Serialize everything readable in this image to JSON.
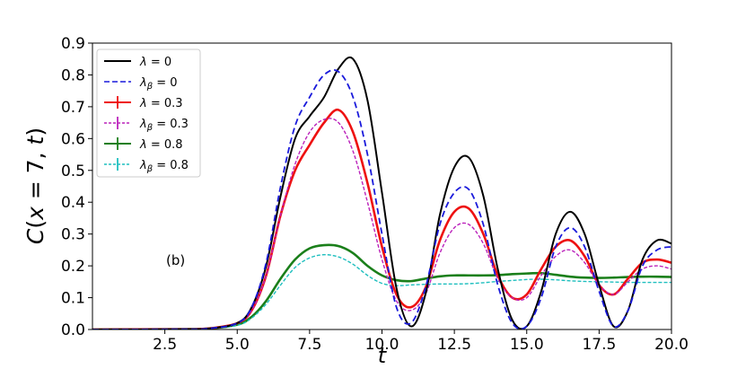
{
  "chart_data": {
    "type": "line",
    "xlabel": "t",
    "ylabel": "C(x = 7, t)",
    "xlim": [
      0,
      20
    ],
    "ylim": [
      0,
      0.9
    ],
    "xticks": [
      "2.5",
      "5.0",
      "7.5",
      "10.0",
      "12.5",
      "15.0",
      "17.5",
      "20.0"
    ],
    "yticks": [
      "0.0",
      "0.1",
      "0.2",
      "0.3",
      "0.4",
      "0.5",
      "0.6",
      "0.7",
      "0.8",
      "0.9"
    ],
    "annotation": "(b)",
    "grid": false,
    "legend_placement": "top-left",
    "series": [
      {
        "name": "λ = 0",
        "color": "#000000",
        "style": "solid",
        "marker": "none",
        "x": [
          0,
          3,
          4,
          5,
          5.5,
          6,
          6.5,
          7,
          7.5,
          8,
          8.5,
          9,
          9.5,
          10,
          10.5,
          11,
          11.5,
          12,
          12.5,
          13,
          13.5,
          14,
          14.5,
          15,
          15.5,
          16,
          16.5,
          17,
          17.5,
          18,
          18.5,
          19,
          19.5,
          20
        ],
        "y": [
          0,
          0.001,
          0.003,
          0.02,
          0.07,
          0.2,
          0.42,
          0.6,
          0.67,
          0.73,
          0.82,
          0.85,
          0.72,
          0.43,
          0.13,
          0.01,
          0.11,
          0.36,
          0.51,
          0.54,
          0.42,
          0.19,
          0.03,
          0.01,
          0.12,
          0.3,
          0.37,
          0.3,
          0.14,
          0.01,
          0.06,
          0.22,
          0.28,
          0.27
        ]
      },
      {
        "name": "λβ = 0",
        "color": "#1a1adb",
        "style": "dashed",
        "marker": "none",
        "x": [
          0,
          3,
          4,
          5,
          5.5,
          6,
          6.5,
          7,
          7.5,
          8,
          8.5,
          9,
          9.5,
          10,
          10.5,
          11,
          11.5,
          12,
          12.5,
          13,
          13.5,
          14,
          14.5,
          15,
          15.5,
          16,
          16.5,
          17,
          17.5,
          18,
          18.5,
          19,
          19.5,
          20
        ],
        "y": [
          0,
          0.001,
          0.003,
          0.02,
          0.07,
          0.21,
          0.45,
          0.64,
          0.73,
          0.8,
          0.81,
          0.73,
          0.55,
          0.3,
          0.07,
          0.02,
          0.13,
          0.33,
          0.43,
          0.44,
          0.33,
          0.14,
          0.02,
          0.01,
          0.1,
          0.26,
          0.32,
          0.26,
          0.12,
          0.01,
          0.06,
          0.2,
          0.25,
          0.26
        ]
      },
      {
        "name": "λ = 0.3",
        "color": "#ee1111",
        "style": "solid",
        "marker": "errorbar",
        "x": [
          0,
          3,
          4,
          5,
          5.5,
          6,
          6.5,
          7,
          7.5,
          8,
          8.5,
          9,
          9.5,
          10,
          10.5,
          11,
          11.5,
          12,
          12.5,
          13,
          13.5,
          14,
          14.5,
          15,
          15.5,
          16,
          16.5,
          17,
          17.5,
          18,
          18.5,
          19,
          19.5,
          20
        ],
        "y": [
          0,
          0.001,
          0.003,
          0.02,
          0.06,
          0.17,
          0.36,
          0.5,
          0.58,
          0.65,
          0.69,
          0.62,
          0.46,
          0.26,
          0.11,
          0.07,
          0.13,
          0.28,
          0.37,
          0.38,
          0.3,
          0.17,
          0.1,
          0.11,
          0.19,
          0.26,
          0.28,
          0.23,
          0.14,
          0.11,
          0.16,
          0.21,
          0.22,
          0.21
        ]
      },
      {
        "name": "λβ = 0.3",
        "color": "#bb22bb",
        "style": "dashed",
        "marker": "errorbar",
        "x": [
          0,
          3,
          4,
          5,
          5.5,
          6,
          6.5,
          7,
          7.5,
          8,
          8.5,
          9,
          9.5,
          10,
          10.5,
          11,
          11.5,
          12,
          12.5,
          13,
          13.5,
          14,
          14.5,
          15,
          15.5,
          16,
          16.5,
          17,
          17.5,
          18,
          18.5,
          19,
          19.5,
          20
        ],
        "y": [
          0,
          0.001,
          0.003,
          0.02,
          0.06,
          0.17,
          0.36,
          0.52,
          0.62,
          0.66,
          0.65,
          0.56,
          0.4,
          0.22,
          0.09,
          0.06,
          0.11,
          0.24,
          0.32,
          0.33,
          0.27,
          0.16,
          0.1,
          0.1,
          0.17,
          0.23,
          0.25,
          0.21,
          0.14,
          0.11,
          0.15,
          0.19,
          0.2,
          0.19
        ]
      },
      {
        "name": "λ = 0.8",
        "color": "#1a7f1a",
        "style": "solid",
        "marker": "errorbar",
        "x": [
          0,
          3,
          4,
          5,
          5.5,
          6,
          6.5,
          7,
          7.5,
          8,
          8.5,
          9,
          9.5,
          10,
          10.5,
          11,
          11.5,
          12,
          12.5,
          13,
          13.5,
          14,
          14.5,
          15,
          15.5,
          16,
          16.5,
          17,
          17.5,
          18,
          18.5,
          19,
          19.5,
          20
        ],
        "y": [
          0,
          0.001,
          0.003,
          0.015,
          0.04,
          0.09,
          0.16,
          0.22,
          0.255,
          0.265,
          0.262,
          0.24,
          0.2,
          0.17,
          0.155,
          0.152,
          0.16,
          0.167,
          0.17,
          0.17,
          0.17,
          0.171,
          0.174,
          0.176,
          0.177,
          0.172,
          0.166,
          0.163,
          0.162,
          0.163,
          0.165,
          0.166,
          0.166,
          0.165
        ]
      },
      {
        "name": "λβ = 0.8",
        "color": "#1fbfbf",
        "style": "dashed",
        "marker": "errorbar",
        "x": [
          0,
          3,
          4,
          5,
          5.5,
          6,
          6.5,
          7,
          7.5,
          8,
          8.5,
          9,
          9.5,
          10,
          10.5,
          11,
          11.5,
          12,
          12.5,
          13,
          13.5,
          14,
          14.5,
          15,
          15.5,
          16,
          16.5,
          17,
          17.5,
          18,
          18.5,
          19,
          19.5,
          20
        ],
        "y": [
          0,
          0.001,
          0.003,
          0.013,
          0.036,
          0.08,
          0.14,
          0.195,
          0.225,
          0.235,
          0.228,
          0.205,
          0.17,
          0.145,
          0.138,
          0.14,
          0.142,
          0.143,
          0.143,
          0.144,
          0.147,
          0.151,
          0.154,
          0.157,
          0.158,
          0.156,
          0.153,
          0.151,
          0.15,
          0.149,
          0.148,
          0.148,
          0.148,
          0.148
        ]
      }
    ],
    "legend": [
      {
        "prefix": "λ",
        "sub": "",
        "value": " = 0"
      },
      {
        "prefix": "λ",
        "sub": "β",
        "value": " = 0"
      },
      {
        "prefix": "λ",
        "sub": "",
        "value": " = 0.3"
      },
      {
        "prefix": "λ",
        "sub": "β",
        "value": " = 0.3"
      },
      {
        "prefix": "λ",
        "sub": "",
        "value": " = 0.8"
      },
      {
        "prefix": "λ",
        "sub": "β",
        "value": " = 0.8"
      }
    ]
  }
}
